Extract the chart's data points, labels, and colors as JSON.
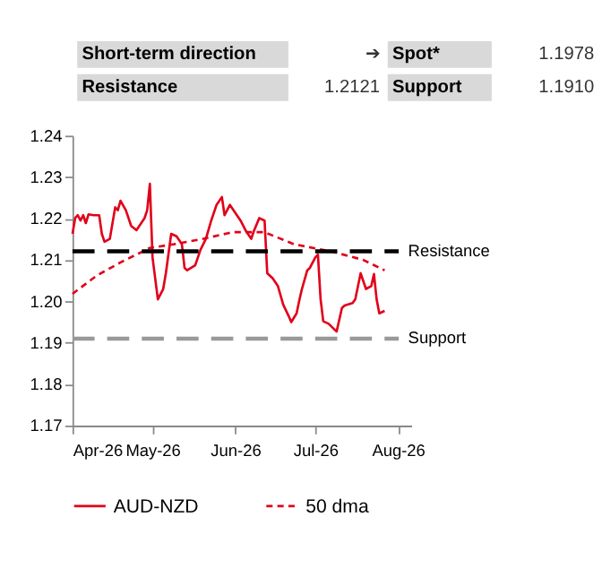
{
  "chart_data": {
    "type": "line",
    "annotations": [
      "Short-term direction",
      "➔",
      "Spot*",
      "1.1978",
      "Resistance",
      "1.2121",
      "Support",
      "1.1910"
    ],
    "series": [
      {
        "name": "AUD-NZD",
        "color": "#e2001a",
        "line_style": "solid",
        "x": [
          "2026-04-01",
          "2026-04-02",
          "2026-04-03",
          "2026-04-04",
          "2026-04-05",
          "2026-04-06",
          "2026-04-07",
          "2026-04-09",
          "2026-04-11",
          "2026-04-12",
          "2026-04-13",
          "2026-04-15",
          "2026-04-17",
          "2026-04-18",
          "2026-04-19",
          "2026-04-21",
          "2026-04-23",
          "2026-04-25",
          "2026-04-28",
          "2026-04-29",
          "2026-04-30",
          "2026-05-01",
          "2026-05-03",
          "2026-05-05",
          "2026-05-06",
          "2026-05-08",
          "2026-05-10",
          "2026-05-12",
          "2026-05-13",
          "2026-05-14",
          "2026-05-17",
          "2026-05-19",
          "2026-05-21",
          "2026-05-23",
          "2026-05-25",
          "2026-05-27",
          "2026-05-28",
          "2026-05-30",
          "2026-06-03",
          "2026-06-05",
          "2026-06-07",
          "2026-06-08",
          "2026-06-10",
          "2026-06-12",
          "2026-06-13",
          "2026-06-15",
          "2026-06-17",
          "2026-06-19",
          "2026-06-21",
          "2026-06-22",
          "2026-06-24",
          "2026-06-25",
          "2026-06-26",
          "2026-06-28",
          "2026-06-29",
          "2026-07-01",
          "2026-07-02",
          "2026-07-03",
          "2026-07-04",
          "2026-07-06",
          "2026-07-09",
          "2026-07-11",
          "2026-07-12",
          "2026-07-15",
          "2026-07-16",
          "2026-07-18",
          "2026-07-20",
          "2026-07-22",
          "2026-07-23",
          "2026-07-24",
          "2026-07-25",
          "2026-07-27"
        ],
        "values": [
          1.2163,
          1.2201,
          1.2208,
          1.2195,
          1.2208,
          1.2189,
          1.221,
          1.2208,
          1.2208,
          1.2163,
          1.2144,
          1.2151,
          1.2227,
          1.222,
          1.2243,
          1.222,
          1.2182,
          1.2172,
          1.2201,
          1.222,
          1.2284,
          1.2106,
          1.2005,
          1.203,
          1.2068,
          1.2163,
          1.2157,
          1.2138,
          1.2081,
          1.2075,
          1.2087,
          1.2125,
          1.2151,
          1.2195,
          1.2233,
          1.2252,
          1.2208,
          1.2233,
          1.2195,
          1.217,
          1.2151,
          1.217,
          1.2201,
          1.2195,
          1.2068,
          1.2056,
          1.2037,
          1.1992,
          1.1965,
          1.195,
          1.1971,
          1.2002,
          1.203,
          1.2075,
          1.2081,
          1.2106,
          1.2113,
          1.2005,
          1.1952,
          1.1946,
          1.1927,
          1.1984,
          1.199,
          1.1996,
          1.2005,
          1.2068,
          1.203,
          1.2037,
          1.2066,
          1.2005,
          1.1971,
          1.1977
        ]
      },
      {
        "name": "50 dma",
        "color": "#e2001a",
        "line_style": "dashed",
        "x": [
          "2026-04-01",
          "2026-04-10",
          "2026-04-19",
          "2026-04-30",
          "2026-05-09",
          "2026-05-20",
          "2026-05-31",
          "2026-06-12",
          "2026-06-23",
          "2026-07-08",
          "2026-07-19",
          "2026-07-27"
        ],
        "values": [
          1.2018,
          1.2062,
          1.2094,
          1.2129,
          1.2138,
          1.2151,
          1.2167,
          1.2167,
          1.2138,
          1.2119,
          1.21,
          1.2075
        ]
      }
    ],
    "ref_lines": [
      {
        "axis": "y",
        "value": 1.2121,
        "label": "Resistance",
        "color": "#000000",
        "line_style": "dashed"
      },
      {
        "axis": "y",
        "value": 1.191,
        "label": "Support",
        "color": "#999999",
        "line_style": "dashed"
      }
    ],
    "xlim": [
      "2026-04-01",
      "2026-08-06"
    ],
    "xticks": [
      {
        "value": "2026-04-01",
        "label": "Apr-26"
      },
      {
        "value": "2026-05-01",
        "label": "May-26"
      },
      {
        "value": "2026-06-01",
        "label": "Jun-26"
      },
      {
        "value": "2026-07-01",
        "label": "Jul-26"
      },
      {
        "value": "2026-08-01",
        "label": "Aug-26"
      }
    ],
    "ylim": [
      1.17,
      1.24
    ],
    "yticks": [
      1.17,
      1.18,
      1.19,
      {
        "value": 1.2,
        "label": "1.20"
      },
      1.21,
      1.22,
      1.23,
      1.24
    ],
    "grid": false,
    "legend": "bottom"
  }
}
